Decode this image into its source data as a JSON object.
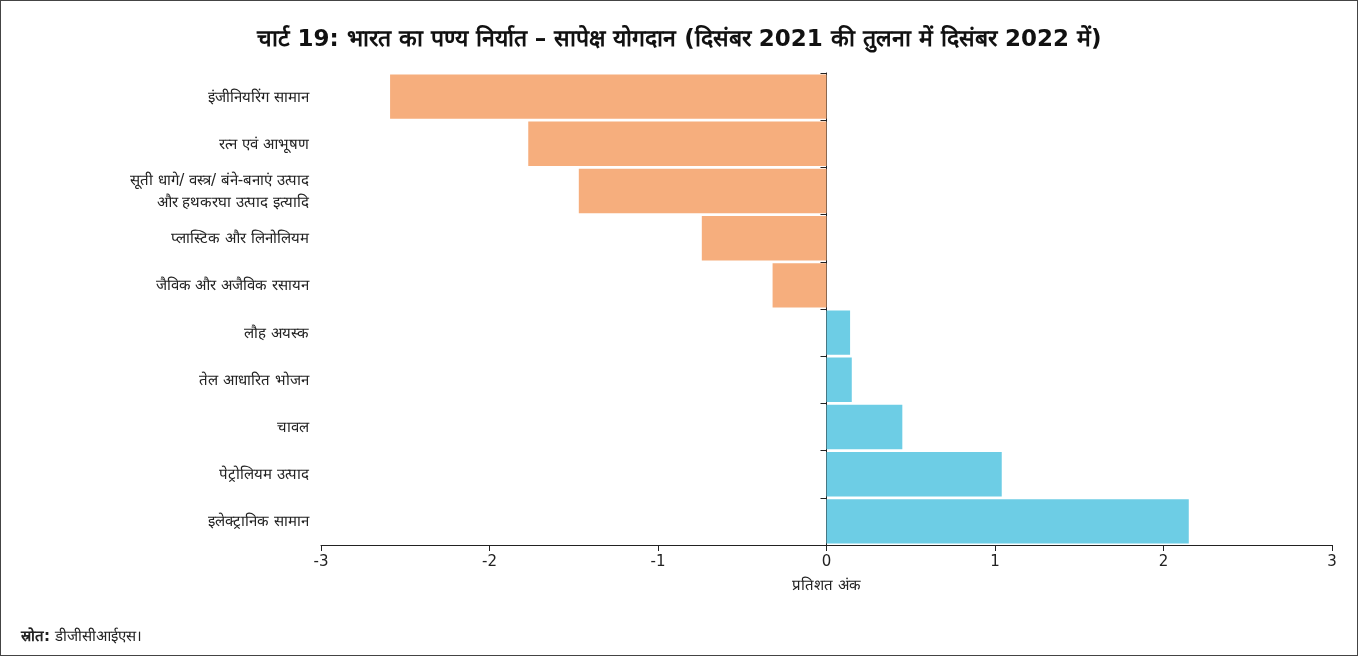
{
  "chart_data": {
    "type": "bar",
    "orientation": "horizontal",
    "title": "चार्ट 19: भारत का पण्य निर्यात – सापेक्ष योगदान (दिसंबर 2021 की तुलना में दिसंबर 2022 में)",
    "xlabel": "प्रतिशत अंक",
    "categories": [
      "इंजीनियरिंग सामान",
      "रत्न एवं आभूषण",
      "सूती धागे/ वस्त्र/ बंने-बनाएं उत्पाद\nऔर हथकरघा उत्पाद इत्यादि",
      "प्लास्टिक और लिनोलियम",
      "जैविक और अजैविक रसायन",
      "लौह अयस्क",
      "तेल आधारित भोजन",
      "चावल",
      "पेट्रोलियम उत्पाद",
      "इलेक्ट्रानिक सामान"
    ],
    "values": [
      -2.59,
      -1.77,
      -1.47,
      -0.74,
      -0.32,
      0.14,
      0.15,
      0.45,
      1.04,
      2.15
    ],
    "colors": [
      "#f6ae7d",
      "#f6ae7d",
      "#f6ae7d",
      "#f6ae7d",
      "#f6ae7d",
      "#6dcde5",
      "#6dcde5",
      "#6dcde5",
      "#6dcde5",
      "#6dcde5"
    ],
    "xlim": [
      -3,
      3
    ],
    "xticks": [
      -3,
      -2,
      -1,
      0,
      1,
      2,
      3
    ],
    "annotations": [
      "स्रोत: डीजीसीआईएस।"
    ]
  }
}
